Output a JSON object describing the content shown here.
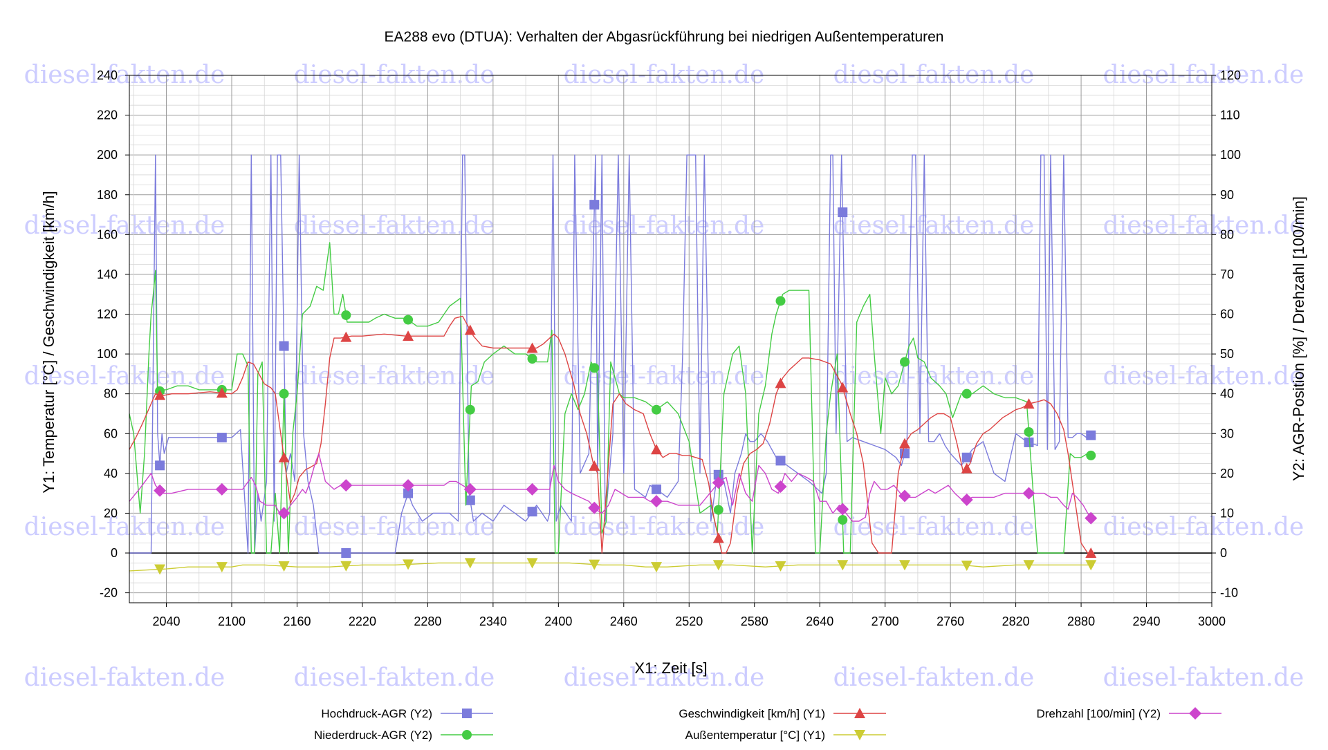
{
  "chart_data": {
    "type": "line",
    "title": "EA288 evo (DTUA): Verhalten der Abgasrückführung bei niedrigen Außentemperaturen",
    "watermark": "diesel-fakten.de",
    "xlabel": "X1: Zeit [s]",
    "y1label": "Y1: Temperatur [°C] / Geschwindigkeit [km/h]",
    "y2label": "Y2: AGR-Position [%] / Drehzahl [100/min]",
    "xlim": [
      2006,
      3000
    ],
    "y1lim": [
      -25,
      240
    ],
    "y2lim": [
      -12.5,
      120
    ],
    "x_ticks": [
      "2040",
      "2100",
      "2160",
      "2220",
      "2280",
      "2340",
      "2400",
      "2460",
      "2520",
      "2580",
      "2640",
      "2700",
      "2760",
      "2820",
      "2880",
      "2940",
      "3000"
    ],
    "y1_ticks": [
      "-20",
      "0",
      "20",
      "40",
      "60",
      "80",
      "100",
      "120",
      "140",
      "160",
      "180",
      "200",
      "220",
      "240"
    ],
    "y2_ticks": [
      "-10",
      "0",
      "10",
      "20",
      "30",
      "40",
      "50",
      "60",
      "70",
      "80",
      "90",
      "100",
      "110",
      "120"
    ],
    "grid": true,
    "legend_position": "bottom",
    "series": [
      {
        "name": "Hochdruck-AGR (Y2)",
        "axis": "y2",
        "color": "#7b7bdc",
        "marker": "square",
        "x": [
          2006,
          2010,
          2016,
          2026,
          2030,
          2032,
          2034,
          2036,
          2038,
          2042,
          2050,
          2060,
          2080,
          2100,
          2108,
          2115,
          2118,
          2121,
          2124,
          2127,
          2132,
          2136,
          2139,
          2142,
          2145,
          2150,
          2154,
          2158,
          2162,
          2166,
          2170,
          2175,
          2180,
          2190,
          2205,
          2220,
          2230,
          2240,
          2250,
          2256,
          2262,
          2266,
          2275,
          2285,
          2300,
          2308,
          2312,
          2314,
          2318,
          2322,
          2330,
          2340,
          2350,
          2360,
          2370,
          2380,
          2390,
          2392,
          2395,
          2398,
          2402,
          2412,
          2415,
          2420,
          2428,
          2434,
          2436,
          2440,
          2443,
          2450,
          2455,
          2460,
          2465,
          2470,
          2475,
          2480,
          2484,
          2490,
          2500,
          2510,
          2514,
          2518,
          2522,
          2526,
          2530,
          2534,
          2540,
          2546,
          2552,
          2558,
          2562,
          2568,
          2572,
          2576,
          2580,
          2586,
          2592,
          2600,
          2610,
          2620,
          2630,
          2638,
          2642,
          2646,
          2650,
          2652,
          2655,
          2660,
          2665,
          2670,
          2680,
          2690,
          2700,
          2710,
          2715,
          2720,
          2725,
          2728,
          2732,
          2736,
          2740,
          2745,
          2750,
          2755,
          2760,
          2770,
          2780,
          2790,
          2800,
          2810,
          2820,
          2830,
          2840,
          2843,
          2846,
          2849,
          2852,
          2856,
          2860,
          2864,
          2868,
          2872,
          2876,
          2880,
          2885,
          2892
        ],
        "y": [
          0,
          0,
          0,
          0,
          100,
          30,
          22,
          30,
          25,
          29,
          29,
          29,
          29,
          29,
          31,
          0,
          100,
          0,
          15,
          8,
          18,
          100,
          8,
          100,
          100,
          20,
          25,
          18,
          100,
          30,
          18,
          12,
          0,
          0,
          0,
          0,
          0,
          0,
          0,
          10,
          15,
          12,
          8,
          10,
          10,
          8,
          100,
          100,
          15,
          8,
          10,
          8,
          12,
          10,
          8,
          12,
          8,
          10,
          100,
          8,
          12,
          8,
          100,
          20,
          25,
          100,
          20,
          100,
          8,
          30,
          100,
          20,
          100,
          16,
          15,
          14,
          17,
          16,
          14,
          18,
          49,
          100,
          100,
          100,
          20,
          100,
          8,
          20,
          18,
          10,
          20,
          25,
          30,
          28,
          28,
          30,
          28,
          24,
          22,
          20,
          18,
          16,
          15,
          20,
          100,
          100,
          30,
          100,
          28,
          29,
          28,
          27,
          26,
          24,
          22,
          27,
          100,
          100,
          30,
          100,
          28,
          28,
          30,
          27,
          25,
          22,
          26,
          28,
          20,
          18,
          30,
          28,
          27,
          100,
          100,
          26,
          100,
          26,
          28,
          100,
          29,
          29,
          30,
          30,
          29,
          30
        ]
      },
      {
        "name": "Niederdruck-AGR (Y2)",
        "axis": "y2",
        "color": "#44cc44",
        "marker": "circle",
        "x": [
          2006,
          2010,
          2016,
          2020,
          2024,
          2026,
          2028,
          2030,
          2032,
          2035,
          2040,
          2050,
          2060,
          2070,
          2080,
          2090,
          2100,
          2105,
          2110,
          2115,
          2118,
          2121,
          2124,
          2128,
          2132,
          2136,
          2140,
          2144,
          2148,
          2152,
          2156,
          2160,
          2165,
          2172,
          2178,
          2184,
          2190,
          2194,
          2198,
          2202,
          2206,
          2212,
          2218,
          2226,
          2232,
          2240,
          2250,
          2260,
          2270,
          2280,
          2290,
          2300,
          2305,
          2310,
          2315,
          2320,
          2326,
          2332,
          2340,
          2350,
          2360,
          2370,
          2380,
          2390,
          2394,
          2397,
          2400,
          2406,
          2412,
          2418,
          2424,
          2430,
          2436,
          2440,
          2444,
          2448,
          2452,
          2456,
          2460,
          2470,
          2480,
          2490,
          2500,
          2510,
          2520,
          2530,
          2540,
          2546,
          2552,
          2556,
          2560,
          2566,
          2572,
          2578,
          2584,
          2590,
          2596,
          2600,
          2606,
          2612,
          2618,
          2624,
          2630,
          2636,
          2640,
          2646,
          2650,
          2656,
          2662,
          2668,
          2674,
          2680,
          2686,
          2690,
          2696,
          2700,
          2706,
          2712,
          2718,
          2722,
          2726,
          2730,
          2736,
          2742,
          2750,
          2756,
          2762,
          2770,
          2780,
          2790,
          2800,
          2810,
          2820,
          2830,
          2840,
          2846,
          2852,
          2858,
          2864,
          2870,
          2874,
          2880,
          2886,
          2892
        ],
        "y": [
          35,
          30,
          10,
          25,
          50,
          60,
          65,
          71,
          40,
          41,
          41,
          42,
          42,
          41,
          41,
          41,
          41,
          50,
          50,
          47,
          0,
          0,
          45,
          48,
          0,
          0,
          15,
          0,
          40,
          0,
          30,
          40,
          60,
          62,
          67,
          66,
          78,
          60,
          60,
          65,
          58,
          58,
          58,
          58,
          59,
          60,
          59,
          59,
          57,
          57,
          58,
          62,
          63,
          64,
          12,
          42,
          43,
          48,
          50,
          52,
          50,
          50,
          48,
          48,
          56,
          0,
          0,
          35,
          40,
          36,
          40,
          48,
          45,
          5,
          8,
          48,
          44,
          40,
          39,
          39,
          38,
          36,
          38,
          35,
          28,
          10,
          12,
          5,
          40,
          45,
          50,
          52,
          40,
          0,
          35,
          42,
          55,
          60,
          65,
          66,
          66,
          66,
          66,
          0,
          0,
          30,
          40,
          50,
          0,
          0,
          58,
          62,
          65,
          50,
          30,
          44,
          40,
          42,
          48,
          52,
          54,
          49,
          48,
          44,
          42,
          40,
          34,
          40,
          40,
          42,
          40,
          39,
          39,
          38,
          0,
          0,
          0,
          0,
          0,
          25,
          24,
          24,
          25,
          24
        ]
      },
      {
        "name": "Geschwindigkeit [km/h] (Y1)",
        "axis": "y1",
        "color": "#dd4444",
        "marker": "triangle-up",
        "x": [
          2006,
          2012,
          2018,
          2026,
          2030,
          2036,
          2045,
          2060,
          2080,
          2100,
          2105,
          2110,
          2115,
          2120,
          2125,
          2130,
          2136,
          2140,
          2145,
          2150,
          2154,
          2158,
          2162,
          2168,
          2172,
          2178,
          2182,
          2186,
          2190,
          2194,
          2200,
          2210,
          2220,
          2240,
          2260,
          2280,
          2295,
          2300,
          2305,
          2312,
          2318,
          2322,
          2330,
          2340,
          2350,
          2360,
          2370,
          2380,
          2386,
          2392,
          2396,
          2400,
          2406,
          2414,
          2420,
          2426,
          2432,
          2436,
          2440,
          2446,
          2450,
          2456,
          2462,
          2470,
          2478,
          2484,
          2490,
          2496,
          2502,
          2508,
          2514,
          2520,
          2526,
          2532,
          2538,
          2542,
          2546,
          2550,
          2554,
          2558,
          2564,
          2570,
          2576,
          2582,
          2588,
          2594,
          2600,
          2606,
          2612,
          2618,
          2624,
          2630,
          2640,
          2650,
          2660,
          2668,
          2674,
          2680,
          2684,
          2688,
          2694,
          2700,
          2706,
          2712,
          2718,
          2724,
          2730,
          2736,
          2742,
          2748,
          2754,
          2760,
          2766,
          2772,
          2778,
          2784,
          2790,
          2796,
          2802,
          2808,
          2814,
          2820,
          2826,
          2832,
          2840,
          2846,
          2852,
          2858,
          2864,
          2868,
          2872,
          2876,
          2880,
          2886,
          2892
        ],
        "y": [
          52,
          58,
          65,
          75,
          80,
          79,
          80,
          80,
          81,
          80,
          82,
          88,
          96,
          95,
          90,
          85,
          83,
          80,
          60,
          40,
          25,
          30,
          38,
          42,
          43,
          45,
          55,
          75,
          98,
          108,
          108,
          109,
          109,
          110,
          109,
          109,
          109,
          114,
          118,
          119,
          113,
          109,
          104,
          103,
          103,
          103,
          103,
          103,
          105,
          108,
          110,
          108,
          100,
          85,
          70,
          60,
          45,
          40,
          0,
          45,
          75,
          80,
          75,
          72,
          70,
          60,
          52,
          48,
          50,
          50,
          49,
          49,
          48,
          47,
          35,
          20,
          10,
          0,
          0,
          5,
          30,
          45,
          50,
          52,
          55,
          65,
          80,
          88,
          92,
          95,
          98,
          98,
          97,
          95,
          85,
          70,
          60,
          45,
          25,
          5,
          0,
          0,
          0,
          40,
          55,
          60,
          62,
          65,
          68,
          70,
          70,
          68,
          55,
          40,
          45,
          55,
          60,
          62,
          65,
          68,
          70,
          72,
          73,
          75,
          76,
          77,
          75,
          70,
          62,
          50,
          35,
          20,
          5,
          0,
          0
        ]
      },
      {
        "name": "Außentemperatur [°C] (Y1)",
        "axis": "y1",
        "color": "#cccc33",
        "marker": "triangle-down",
        "x": [
          2006,
          2040,
          2060,
          2100,
          2110,
          2130,
          2160,
          2190,
          2220,
          2250,
          2290,
          2330,
          2370,
          2410,
          2440,
          2460,
          2480,
          2500,
          2530,
          2560,
          2590,
          2620,
          2660,
          2700,
          2740,
          2770,
          2790,
          2820,
          2850,
          2892
        ],
        "y": [
          -9,
          -8,
          -7,
          -7,
          -6,
          -6,
          -7,
          -7,
          -6,
          -6,
          -5,
          -5,
          -5,
          -5,
          -6,
          -6,
          -7,
          -7,
          -6,
          -6,
          -7,
          -6,
          -6,
          -6,
          -6,
          -6,
          -7,
          -6,
          -6,
          -6
        ]
      },
      {
        "name": "Drehzahl [100/min] (Y2)",
        "axis": "y2",
        "color": "#cc44cc",
        "marker": "diamond",
        "x": [
          2006,
          2015,
          2026,
          2030,
          2036,
          2045,
          2060,
          2080,
          2100,
          2110,
          2118,
          2122,
          2126,
          2132,
          2140,
          2144,
          2150,
          2154,
          2160,
          2165,
          2168,
          2172,
          2176,
          2180,
          2186,
          2190,
          2194,
          2200,
          2210,
          2220,
          2230,
          2240,
          2260,
          2280,
          2295,
          2300,
          2306,
          2312,
          2318,
          2324,
          2330,
          2340,
          2360,
          2380,
          2392,
          2396,
          2400,
          2406,
          2412,
          2420,
          2428,
          2434,
          2440,
          2446,
          2452,
          2458,
          2464,
          2470,
          2478,
          2484,
          2490,
          2500,
          2510,
          2520,
          2530,
          2536,
          2542,
          2548,
          2554,
          2560,
          2566,
          2572,
          2578,
          2584,
          2590,
          2596,
          2602,
          2608,
          2614,
          2620,
          2628,
          2634,
          2640,
          2646,
          2652,
          2658,
          2664,
          2670,
          2676,
          2682,
          2686,
          2690,
          2696,
          2702,
          2708,
          2714,
          2720,
          2728,
          2734,
          2740,
          2746,
          2752,
          2758,
          2764,
          2772,
          2780,
          2790,
          2800,
          2810,
          2820,
          2830,
          2840,
          2846,
          2852,
          2858,
          2864,
          2868,
          2872,
          2876,
          2882,
          2888,
          2892
        ],
        "y": [
          13,
          16,
          20,
          17,
          15,
          15,
          16,
          16,
          16,
          16,
          19,
          17,
          13,
          12,
          12,
          10,
          10,
          12,
          14,
          16,
          15,
          18,
          22,
          25,
          18,
          17,
          16,
          17,
          17,
          17,
          17,
          17,
          17,
          17,
          17,
          18,
          18,
          17,
          16,
          16,
          16,
          16,
          16,
          16,
          16,
          22,
          18,
          16,
          15,
          14,
          13,
          11,
          10,
          12,
          16,
          15,
          14,
          14,
          14,
          13,
          13,
          13,
          12,
          12,
          12,
          14,
          16,
          18,
          19,
          12,
          20,
          15,
          13,
          22,
          20,
          16,
          15,
          20,
          18,
          20,
          19,
          18,
          13,
          13,
          10,
          12,
          10,
          8,
          8,
          9,
          15,
          18,
          16,
          16,
          17,
          15,
          14,
          14,
          15,
          16,
          15,
          16,
          17,
          15,
          13,
          14,
          14,
          14,
          15,
          15,
          15,
          15,
          15,
          14,
          14,
          12,
          11,
          15,
          14,
          12,
          9,
          8
        ]
      }
    ]
  }
}
